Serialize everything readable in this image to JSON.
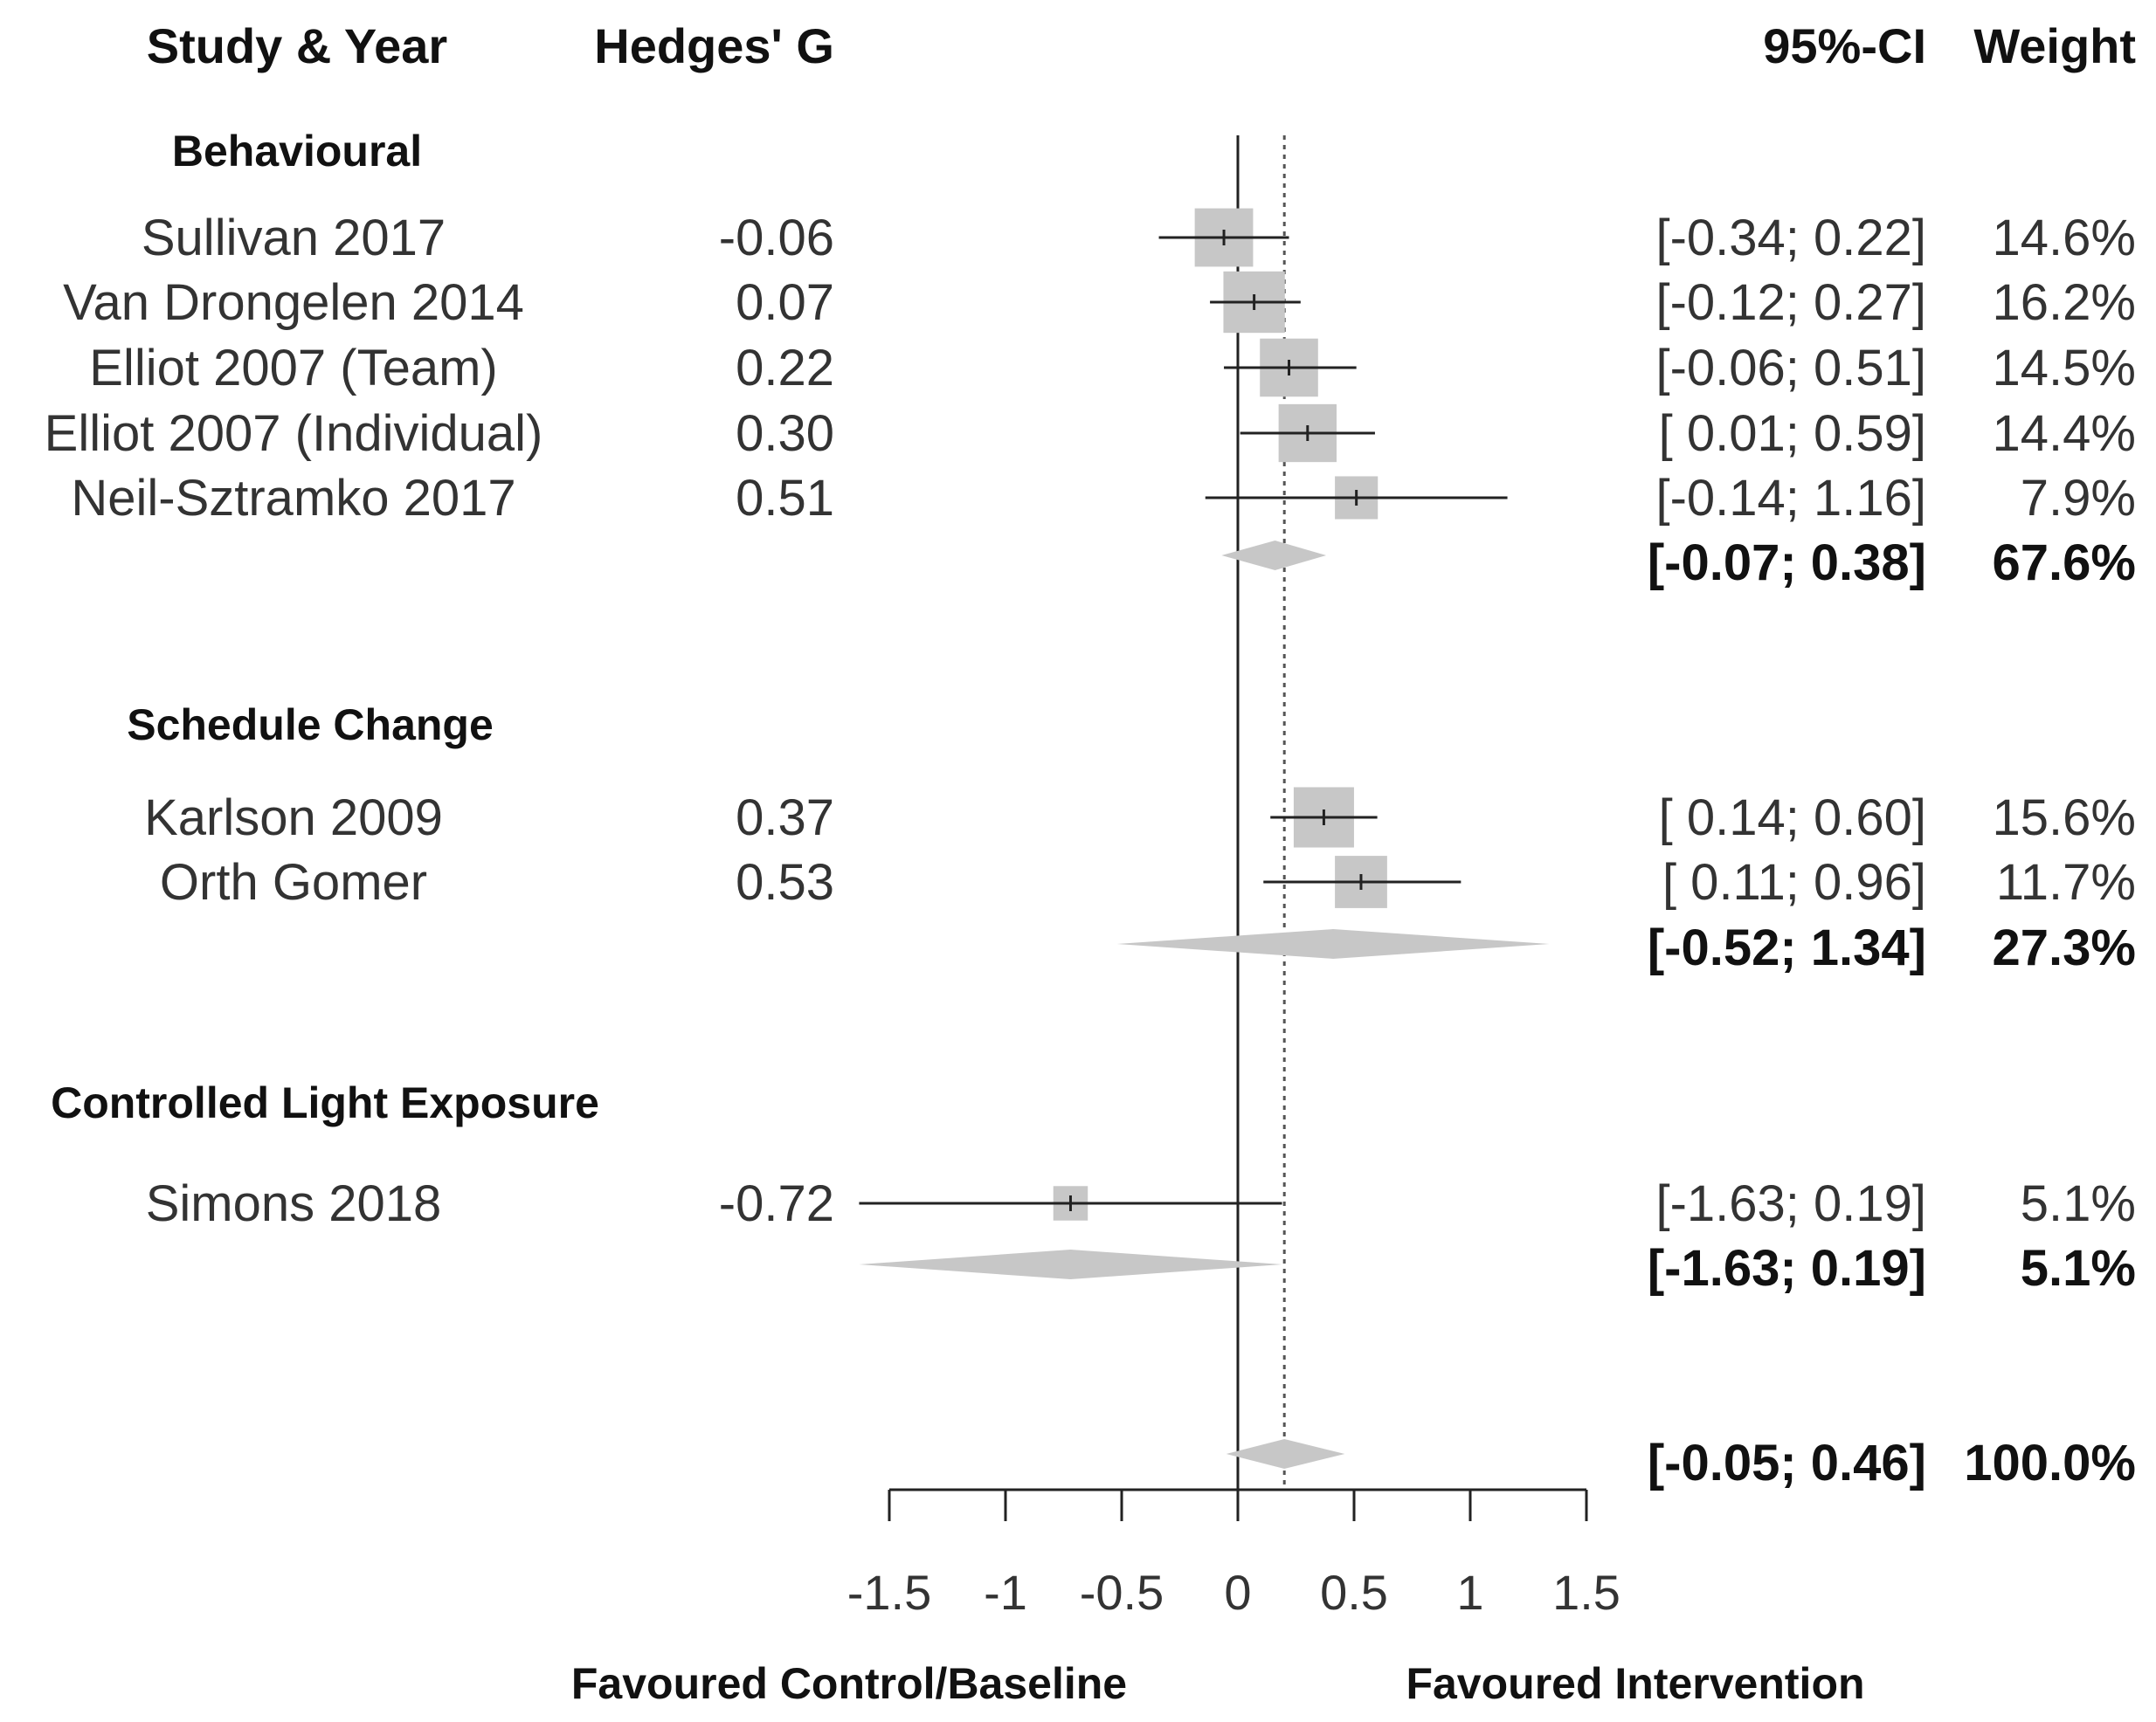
{
  "chart_data": {
    "type": "forest",
    "headers": {
      "study": "Study & Year",
      "effect": "Hedges' G",
      "ci": "95%-CI",
      "weight": "Weight"
    },
    "xlim": [
      -1.5,
      1.5
    ],
    "xticks": [
      -1.5,
      -1,
      -0.5,
      0,
      0.5,
      1,
      1.5
    ],
    "xtick_labels": [
      "-1.5",
      "-1",
      "-0.5",
      "0",
      "0.5",
      "1",
      "1.5"
    ],
    "reference_line": 0,
    "pooled_estimate_line": 0.2,
    "xlabel_left": "Favoured Control/Baseline",
    "xlabel_right": "Favoured Intervention",
    "groups": [
      {
        "name": "Behavioural",
        "studies": [
          {
            "study": "Sullivan 2017",
            "g": -0.06,
            "g_label": "-0.06",
            "lower": -0.34,
            "upper": 0.22,
            "ci_label": "[-0.34; 0.22]",
            "weight": 14.6,
            "weight_label": "14.6%"
          },
          {
            "study": "Van Drongelen 2014",
            "g": 0.07,
            "g_label": "0.07",
            "lower": -0.12,
            "upper": 0.27,
            "ci_label": "[-0.12; 0.27]",
            "weight": 16.2,
            "weight_label": "16.2%"
          },
          {
            "study": "Elliot 2007 (Team)",
            "g": 0.22,
            "g_label": "0.22",
            "lower": -0.06,
            "upper": 0.51,
            "ci_label": "[-0.06; 0.51]",
            "weight": 14.5,
            "weight_label": "14.5%"
          },
          {
            "study": "Elliot 2007 (Individual)",
            "g": 0.3,
            "g_label": "0.30",
            "lower": 0.01,
            "upper": 0.59,
            "ci_label": "[ 0.01; 0.59]",
            "weight": 14.4,
            "weight_label": "14.4%"
          },
          {
            "study": "Neil-Sztramko 2017",
            "g": 0.51,
            "g_label": "0.51",
            "lower": -0.14,
            "upper": 1.16,
            "ci_label": "[-0.14; 1.16]",
            "weight": 7.9,
            "weight_label": "7.9%"
          }
        ],
        "summary": {
          "g": 0.16,
          "lower": -0.07,
          "upper": 0.38,
          "ci_label": "[-0.07; 0.38]",
          "weight_label": "67.6%"
        }
      },
      {
        "name": "Schedule Change",
        "studies": [
          {
            "study": "Karlson 2009",
            "g": 0.37,
            "g_label": "0.37",
            "lower": 0.14,
            "upper": 0.6,
            "ci_label": "[ 0.14; 0.60]",
            "weight": 15.6,
            "weight_label": "15.6%"
          },
          {
            "study": "Orth Gomer",
            "g": 0.53,
            "g_label": "0.53",
            "lower": 0.11,
            "upper": 0.96,
            "ci_label": "[ 0.11; 0.96]",
            "weight": 11.7,
            "weight_label": "11.7%"
          }
        ],
        "summary": {
          "g": 0.41,
          "lower": -0.52,
          "upper": 1.34,
          "ci_label": "[-0.52; 1.34]",
          "weight_label": "27.3%"
        }
      },
      {
        "name": "Controlled Light Exposure",
        "studies": [
          {
            "study": "Simons 2018",
            "g": -0.72,
            "g_label": "-0.72",
            "lower": -1.63,
            "upper": 0.19,
            "ci_label": "[-1.63; 0.19]",
            "weight": 5.1,
            "weight_label": "5.1%"
          }
        ],
        "summary": {
          "g": -0.72,
          "lower": -1.63,
          "upper": 0.19,
          "ci_label": "[-1.63; 0.19]",
          "weight_label": "5.1%"
        }
      }
    ],
    "overall": {
      "g": 0.2,
      "lower": -0.05,
      "upper": 0.46,
      "ci_label": "[-0.05; 0.46]",
      "weight_label": "100.0%"
    }
  }
}
